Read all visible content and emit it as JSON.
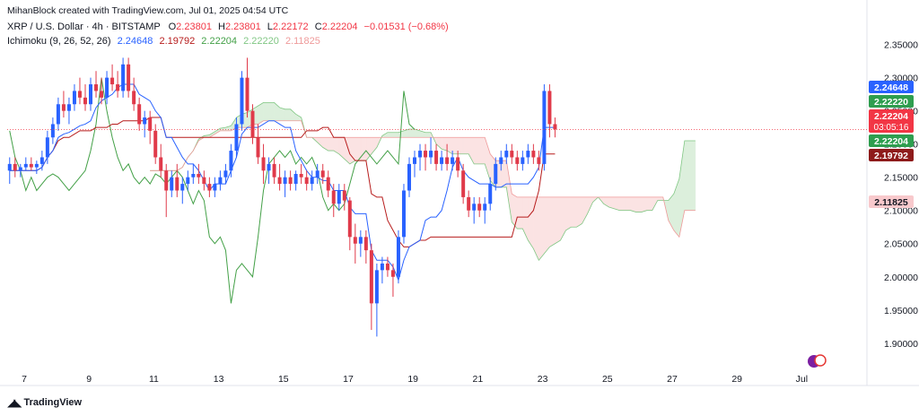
{
  "header": {
    "credit": "MihanBlock created with TradingView.com, Jul 01, 2025 04:54 UTC",
    "symbol": "XRP / U.S. Dollar · 4h · BITSTAMP",
    "open_label": "O",
    "open": "2.23801",
    "high_label": "H",
    "high": "2.23801",
    "low_label": "L",
    "low": "2.22172",
    "close_label": "C",
    "close": "2.22204",
    "change": "−0.01531 (−0.68%)",
    "indicator_name": "Ichimoku (9, 26, 52, 26)",
    "indicator_values": [
      "2.24648",
      "2.19792",
      "2.22204",
      "2.22220",
      "2.11825"
    ]
  },
  "footer": {
    "brand": "TradingView"
  },
  "colors": {
    "up": "#2962ff",
    "down": "#e03a4a",
    "tenkan": "#2962ff",
    "kijun": "#b71c1c",
    "chikou": "#43a047",
    "cloud_green": "#dcefdc",
    "cloud_red": "#fbe3e3",
    "span_a": "#81c784",
    "span_b": "#ef9a9a"
  },
  "chart_data": {
    "type": "candlestick",
    "title": "XRP / U.S. Dollar · 4h · BITSTAMP",
    "ylim": [
      1.87,
      2.39
    ],
    "y_ticks": [
      "2.35000",
      "2.30000",
      "2.25000",
      "2.20000",
      "2.15000",
      "2.10000",
      "2.05000",
      "2.00000",
      "1.95000",
      "1.90000"
    ],
    "x_ticks": [
      "7",
      "9",
      "11",
      "13",
      "15",
      "17",
      "19",
      "21",
      "23",
      "25",
      "27",
      "29",
      "Jul"
    ],
    "x_tick_days": [
      7,
      9,
      11,
      13,
      15,
      17,
      19,
      21,
      23,
      25,
      27,
      29,
      31
    ],
    "x_start_day": 6.55,
    "candles_per_day": 6,
    "price_labels": [
      {
        "value": "2.24648",
        "kind": "blue"
      },
      {
        "value": "2.22220",
        "kind": "green"
      },
      {
        "value": "2.22204",
        "kind": "red",
        "sub": "03:05:16"
      },
      {
        "value": "2.22204",
        "kind": "green"
      },
      {
        "value": "2.19792",
        "kind": "darkred"
      },
      {
        "value": "2.11825",
        "kind": "pink"
      }
    ],
    "candles": [
      [
        2.16,
        2.18,
        2.14,
        2.17
      ],
      [
        2.17,
        2.18,
        2.15,
        2.16
      ],
      [
        2.16,
        2.17,
        2.15,
        2.165
      ],
      [
        2.165,
        2.18,
        2.16,
        2.17
      ],
      [
        2.17,
        2.18,
        2.16,
        2.165
      ],
      [
        2.165,
        2.175,
        2.155,
        2.17
      ],
      [
        2.17,
        2.19,
        2.16,
        2.18
      ],
      [
        2.18,
        2.22,
        2.17,
        2.21
      ],
      [
        2.21,
        2.24,
        2.2,
        2.23
      ],
      [
        2.23,
        2.27,
        2.22,
        2.26
      ],
      [
        2.26,
        2.28,
        2.24,
        2.25
      ],
      [
        2.25,
        2.27,
        2.23,
        2.26
      ],
      [
        2.26,
        2.29,
        2.25,
        2.28
      ],
      [
        2.28,
        2.3,
        2.26,
        2.27
      ],
      [
        2.27,
        2.29,
        2.25,
        2.26
      ],
      [
        2.26,
        2.3,
        2.25,
        2.29
      ],
      [
        2.29,
        2.31,
        2.27,
        2.28
      ],
      [
        2.28,
        2.3,
        2.26,
        2.27
      ],
      [
        2.27,
        2.31,
        2.26,
        2.3
      ],
      [
        2.3,
        2.32,
        2.28,
        2.29
      ],
      [
        2.29,
        2.31,
        2.27,
        2.28
      ],
      [
        2.28,
        2.33,
        2.27,
        2.32
      ],
      [
        2.32,
        2.33,
        2.27,
        2.28
      ],
      [
        2.28,
        2.3,
        2.25,
        2.26
      ],
      [
        2.26,
        2.27,
        2.22,
        2.23
      ],
      [
        2.23,
        2.25,
        2.21,
        2.24
      ],
      [
        2.24,
        2.25,
        2.2,
        2.22
      ],
      [
        2.22,
        2.23,
        2.17,
        2.18
      ],
      [
        2.18,
        2.2,
        2.15,
        2.16
      ],
      [
        2.16,
        2.17,
        2.09,
        2.13
      ],
      [
        2.13,
        2.16,
        2.12,
        2.15
      ],
      [
        2.15,
        2.17,
        2.12,
        2.13
      ],
      [
        2.13,
        2.15,
        2.11,
        2.14
      ],
      [
        2.14,
        2.16,
        2.13,
        2.15
      ],
      [
        2.15,
        2.17,
        2.14,
        2.155
      ],
      [
        2.155,
        2.17,
        2.14,
        2.15
      ],
      [
        2.15,
        2.16,
        2.13,
        2.14
      ],
      [
        2.14,
        2.15,
        2.12,
        2.13
      ],
      [
        2.13,
        2.15,
        2.12,
        2.14
      ],
      [
        2.14,
        2.16,
        2.13,
        2.15
      ],
      [
        2.15,
        2.17,
        2.14,
        2.16
      ],
      [
        2.16,
        2.2,
        2.15,
        2.19
      ],
      [
        2.19,
        2.24,
        2.18,
        2.23
      ],
      [
        2.23,
        2.31,
        2.22,
        2.3
      ],
      [
        2.3,
        2.33,
        2.24,
        2.25
      ],
      [
        2.25,
        2.26,
        2.2,
        2.21
      ],
      [
        2.21,
        2.23,
        2.17,
        2.18
      ],
      [
        2.18,
        2.2,
        2.14,
        2.16
      ],
      [
        2.16,
        2.18,
        2.14,
        2.17
      ],
      [
        2.17,
        2.18,
        2.14,
        2.15
      ],
      [
        2.15,
        2.17,
        2.13,
        2.14
      ],
      [
        2.14,
        2.16,
        2.12,
        2.15
      ],
      [
        2.15,
        2.16,
        2.13,
        2.14
      ],
      [
        2.14,
        2.16,
        2.13,
        2.155
      ],
      [
        2.155,
        2.17,
        2.14,
        2.15
      ],
      [
        2.15,
        2.16,
        2.13,
        2.14
      ],
      [
        2.14,
        2.16,
        2.13,
        2.15
      ],
      [
        2.15,
        2.17,
        2.14,
        2.16
      ],
      [
        2.16,
        2.17,
        2.14,
        2.15
      ],
      [
        2.15,
        2.16,
        2.12,
        2.13
      ],
      [
        2.13,
        2.14,
        2.09,
        2.11
      ],
      [
        2.11,
        2.14,
        2.1,
        2.13
      ],
      [
        2.13,
        2.14,
        2.1,
        2.115
      ],
      [
        2.115,
        2.12,
        2.04,
        2.06
      ],
      [
        2.06,
        2.08,
        2.02,
        2.05
      ],
      [
        2.05,
        2.07,
        2.03,
        2.06
      ],
      [
        2.06,
        2.07,
        2.02,
        2.04
      ],
      [
        2.04,
        2.05,
        1.92,
        1.96
      ],
      [
        1.96,
        2.02,
        1.91,
        2.01
      ],
      [
        2.01,
        2.03,
        1.99,
        2.02
      ],
      [
        2.02,
        2.03,
        2.0,
        2.01
      ],
      [
        2.01,
        2.02,
        1.97,
        2.0
      ],
      [
        2.0,
        2.07,
        1.99,
        2.06
      ],
      [
        2.06,
        2.14,
        2.05,
        2.13
      ],
      [
        2.13,
        2.18,
        2.12,
        2.17
      ],
      [
        2.17,
        2.19,
        2.15,
        2.18
      ],
      [
        2.18,
        2.2,
        2.16,
        2.19
      ],
      [
        2.19,
        2.2,
        2.16,
        2.18
      ],
      [
        2.18,
        2.21,
        2.17,
        2.19
      ],
      [
        2.19,
        2.2,
        2.16,
        2.17
      ],
      [
        2.17,
        2.19,
        2.16,
        2.18
      ],
      [
        2.18,
        2.2,
        2.16,
        2.17
      ],
      [
        2.17,
        2.19,
        2.16,
        2.18
      ],
      [
        2.18,
        2.19,
        2.15,
        2.16
      ],
      [
        2.16,
        2.17,
        2.11,
        2.12
      ],
      [
        2.12,
        2.13,
        2.09,
        2.1
      ],
      [
        2.1,
        2.12,
        2.08,
        2.11
      ],
      [
        2.11,
        2.12,
        2.09,
        2.1
      ],
      [
        2.1,
        2.12,
        2.08,
        2.11
      ],
      [
        2.11,
        2.15,
        2.1,
        2.14
      ],
      [
        2.14,
        2.18,
        2.13,
        2.17
      ],
      [
        2.17,
        2.19,
        2.16,
        2.18
      ],
      [
        2.18,
        2.2,
        2.17,
        2.19
      ],
      [
        2.19,
        2.2,
        2.17,
        2.18
      ],
      [
        2.18,
        2.19,
        2.16,
        2.17
      ],
      [
        2.17,
        2.19,
        2.16,
        2.18
      ],
      [
        2.18,
        2.2,
        2.17,
        2.19
      ],
      [
        2.19,
        2.2,
        2.17,
        2.18
      ],
      [
        2.18,
        2.19,
        2.16,
        2.17
      ],
      [
        2.17,
        2.29,
        2.16,
        2.28
      ],
      [
        2.28,
        2.29,
        2.21,
        2.23
      ],
      [
        2.23,
        2.24,
        2.21,
        2.222
      ]
    ]
  }
}
